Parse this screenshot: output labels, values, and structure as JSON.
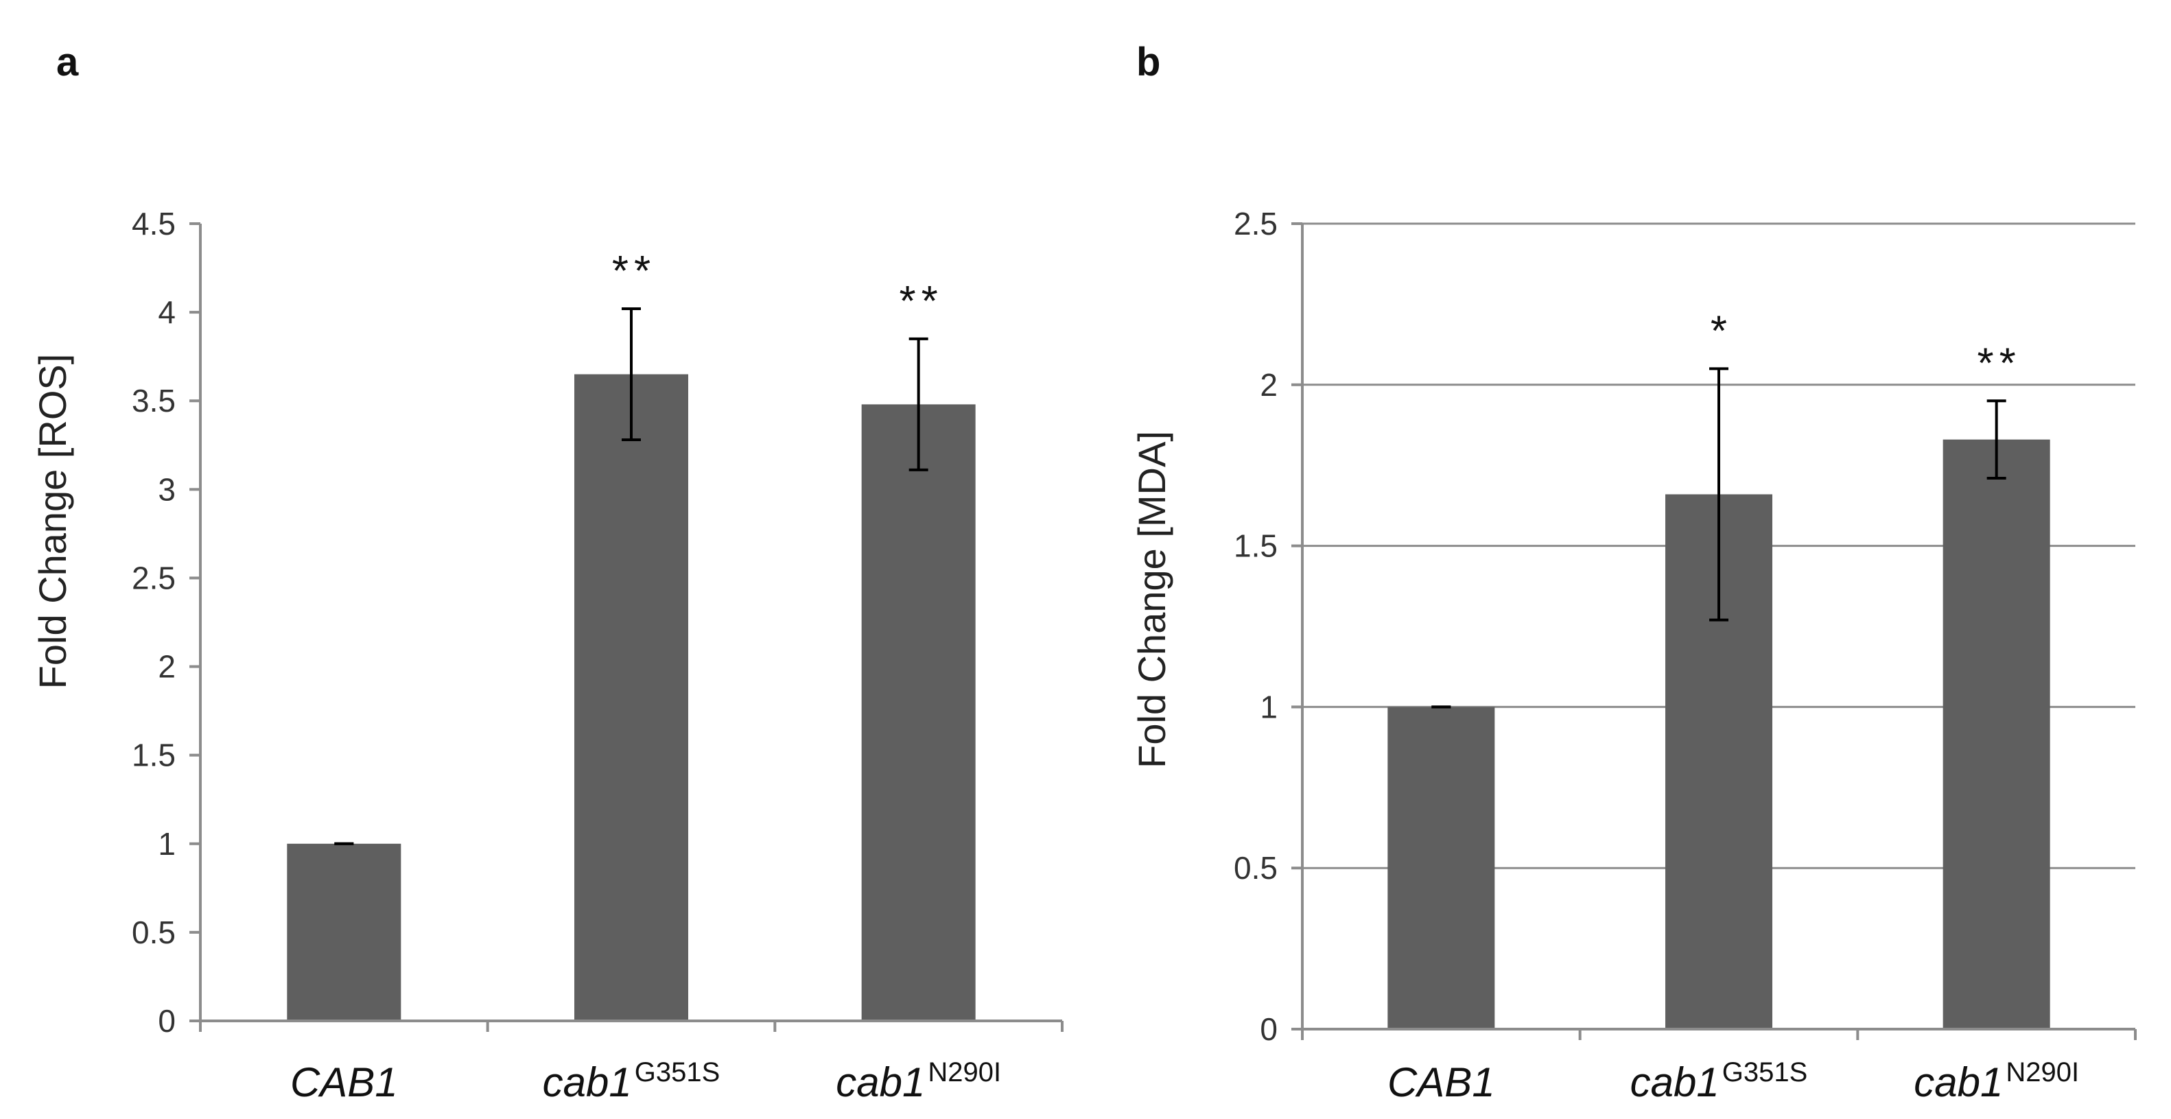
{
  "chart_data": [
    {
      "panel": "a",
      "type": "bar",
      "categories": [
        {
          "name": "CAB1",
          "sup": ""
        },
        {
          "name": "cab1",
          "sup": "G351S"
        },
        {
          "name": "cab1",
          "sup": "N290I"
        }
      ],
      "values": [
        1.0,
        3.65,
        3.48
      ],
      "errors": [
        0.0,
        0.37,
        0.37
      ],
      "significance": [
        "",
        "**",
        "**"
      ],
      "ylabel": "Fold Change [ROS]",
      "xlabel": "",
      "ylim": [
        0,
        4.5
      ],
      "yticks": [
        0,
        0.5,
        1,
        1.5,
        2,
        2.5,
        3,
        3.5,
        4,
        4.5
      ],
      "ytick_labels": [
        "0",
        "0.5",
        "1",
        "1.5",
        "2",
        "2.5",
        "3",
        "3.5",
        "4",
        "4.5"
      ],
      "grid": false,
      "bar_color": "#5f5f5f"
    },
    {
      "panel": "b",
      "type": "bar",
      "categories": [
        {
          "name": "CAB1",
          "sup": ""
        },
        {
          "name": "cab1",
          "sup": "G351S"
        },
        {
          "name": "cab1",
          "sup": "N290I"
        }
      ],
      "values": [
        1.0,
        1.66,
        1.83
      ],
      "errors": [
        0.0,
        0.39,
        0.12
      ],
      "significance": [
        "",
        "*",
        "**"
      ],
      "ylabel": "Fold Change  [MDA]",
      "xlabel": "",
      "ylim": [
        0,
        2.5
      ],
      "yticks": [
        0,
        0.5,
        1,
        1.5,
        2,
        2.5
      ],
      "ytick_labels": [
        "0",
        "0.5",
        "1",
        "1.5",
        "2",
        "2.5"
      ],
      "grid": true,
      "bar_color": "#5f5f5f"
    }
  ]
}
